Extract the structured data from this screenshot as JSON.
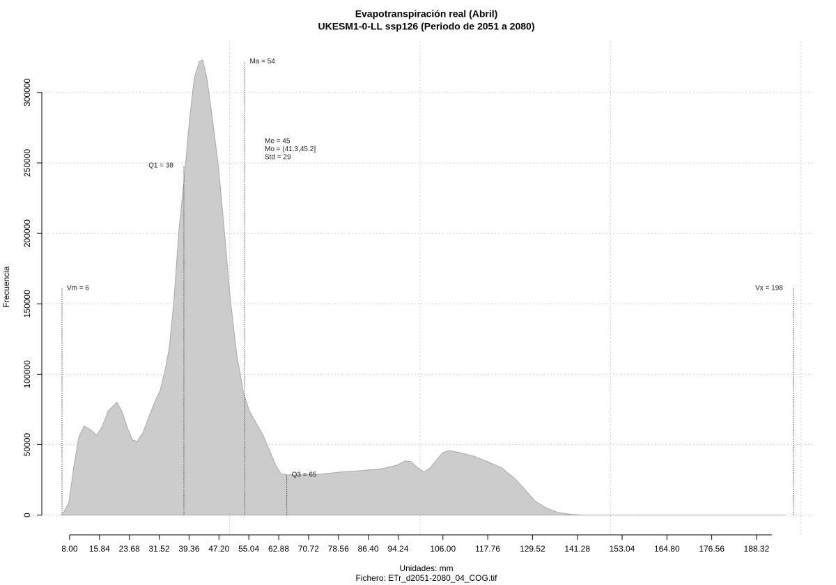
{
  "chart_data": {
    "type": "area",
    "title": "Evapotranspiración real (Abril)",
    "subtitle": "UKESM1-0-LL ssp126 (Periodo de 2051 a 2080)",
    "x_label": "Unidades: mm",
    "caption": "Fichero: ETr_d2051-2080_04_COG.tif",
    "y_label": "Frecuencia",
    "color": "#cccccc",
    "line_color": "#a8a8a8",
    "grid": true,
    "xlim": [
      0.7,
      203.7
    ],
    "ylim": [
      -14000,
      336000
    ],
    "xgrid": [
      50,
      100,
      150,
      200
    ],
    "xticks": [
      {
        "value": 8,
        "label": "8.00"
      },
      {
        "value": 15.84,
        "label": "15.84"
      },
      {
        "value": 23.68,
        "label": "23.68"
      },
      {
        "value": 31.52,
        "label": "31.52"
      },
      {
        "value": 39.36,
        "label": "39.36"
      },
      {
        "value": 47.2,
        "label": "47.20"
      },
      {
        "value": 55.04,
        "label": "55.04"
      },
      {
        "value": 62.88,
        "label": "62.88"
      },
      {
        "value": 70.72,
        "label": "70.72"
      },
      {
        "value": 78.56,
        "label": "78.56"
      },
      {
        "value": 86.4,
        "label": "86.40"
      },
      {
        "value": 94.24,
        "label": "94.24"
      },
      {
        "value": 106,
        "label": "106.00"
      },
      {
        "value": 117.76,
        "label": "117.76"
      },
      {
        "value": 129.52,
        "label": "129.52"
      },
      {
        "value": 141.28,
        "label": "141.28"
      },
      {
        "value": 153.04,
        "label": "153.04"
      },
      {
        "value": 164.8,
        "label": "164.80"
      },
      {
        "value": 176.56,
        "label": "176.56"
      },
      {
        "value": 188.32,
        "label": "188.32"
      }
    ],
    "yticks": [
      0,
      50000,
      100000,
      150000,
      200000,
      250000,
      300000
    ],
    "x": [
      6.0,
      7.8,
      9.1,
      10.4,
      11.8,
      13.5,
      15.1,
      16.6,
      18.1,
      19.5,
      20.4,
      21.7,
      23.2,
      24.5,
      25.7,
      27.2,
      28.7,
      30.3,
      31.8,
      33.2,
      34.2,
      35.4,
      36.7,
      38.2,
      39.5,
      40.7,
      42.0,
      42.9,
      44.0,
      45.5,
      47.1,
      48.6,
      50.2,
      51.9,
      53.7,
      55.2,
      57.0,
      58.8,
      60.3,
      62.1,
      63.4,
      64.9,
      68.4,
      73.8,
      79.3,
      84.8,
      90.3,
      94.0,
      96.1,
      97.6,
      99.4,
      101.1,
      102.7,
      104.4,
      106.0,
      107.6,
      110.4,
      114.1,
      117.7,
      121.4,
      125.0,
      127.8,
      130.2,
      133.3,
      136.0,
      139.7,
      143.3,
      154.3,
      196.0
    ],
    "values": [
      0,
      8900,
      34500,
      55300,
      63200,
      60700,
      56700,
      63200,
      74000,
      77500,
      80000,
      74000,
      61700,
      53300,
      52300,
      58200,
      69100,
      80000,
      88800,
      104600,
      119400,
      153000,
      202300,
      241800,
      281200,
      309900,
      321700,
      323200,
      310800,
      281200,
      246700,
      202300,
      153000,
      113500,
      86300,
      74000,
      65100,
      56700,
      46900,
      35500,
      29600,
      28600,
      28600,
      29100,
      30600,
      31600,
      33100,
      35500,
      38500,
      38000,
      33600,
      30600,
      33600,
      39500,
      44400,
      45900,
      44400,
      41900,
      38000,
      33600,
      25700,
      17300,
      9900,
      4900,
      2000,
      500,
      0,
      0,
      0
    ],
    "markers": [
      {
        "label": "Vm = 6",
        "x": 6,
        "y": 161000,
        "side": "right"
      },
      {
        "label": "Q1 = 38",
        "x": 38,
        "y": 248000,
        "side": "left"
      },
      {
        "label": "Ma = 54",
        "x": 54,
        "y": 322000,
        "side": "right"
      },
      {
        "label": "Q3 = 65",
        "x": 65,
        "y": 28600,
        "side": "right"
      },
      {
        "label": "Vx = 198",
        "x": 198,
        "y": 161000,
        "side": "left"
      }
    ],
    "stats_text": [
      "Me = 45",
      "Mo = (41.3,45.2]",
      "Std = 29"
    ]
  }
}
